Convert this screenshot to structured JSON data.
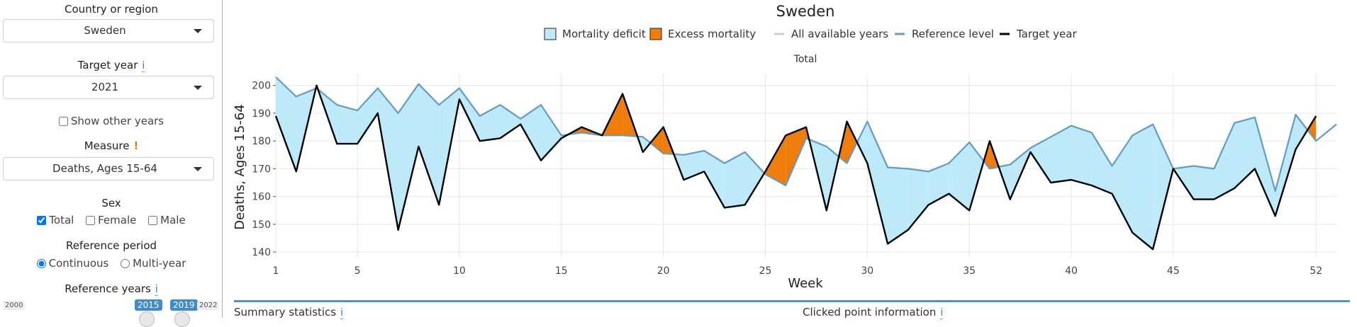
{
  "sidebar": {
    "country_label": "Country or region",
    "country_value": "Sweden",
    "target_year_label": "Target year",
    "target_year_value": "2021",
    "show_other_years_label": "Show other years",
    "measure_label": "Measure",
    "measure_value": "Deaths, Ages 15-64",
    "sex_label": "Sex",
    "sex_options": [
      "Total",
      "Female",
      "Male"
    ],
    "sex_selected": "Total",
    "reference_period_label": "Reference period",
    "reference_period_options": [
      "Continuous",
      "Multi-year"
    ],
    "reference_period_selected": "Continuous",
    "reference_years_label": "Reference years",
    "slider_min": "2000",
    "slider_start": "2015",
    "slider_end": "2019",
    "slider_max": "2022",
    "info_mark": "i",
    "warn_mark": "!"
  },
  "footer": {
    "summary_label": "Summary statistics",
    "clicked_label": "Clicked point information"
  },
  "colors": {
    "deficit_fill": "#bde9f9",
    "excess_fill": "#ef7d0c",
    "reference_line": "#5f9cc6",
    "target_line": "#000000",
    "all_years_line": "#cccccc"
  },
  "chart_data": {
    "type": "area",
    "title": "Sweden",
    "subtitle": "Total",
    "xlabel": "Week",
    "ylabel": "Deaths, Ages 15-64",
    "xlim": [
      1,
      53
    ],
    "ylim": [
      138,
      204
    ],
    "x_ticks": [
      1,
      5,
      10,
      15,
      20,
      25,
      30,
      35,
      40,
      45,
      52
    ],
    "y_ticks": [
      140,
      150,
      160,
      170,
      180,
      190,
      200
    ],
    "grid": true,
    "legend_position": "top",
    "legend": [
      "Mortality deficit",
      "Excess mortality",
      "All available years",
      "Reference level",
      "Target year"
    ],
    "x": [
      1,
      2,
      3,
      4,
      5,
      6,
      7,
      8,
      9,
      10,
      11,
      12,
      13,
      14,
      15,
      16,
      17,
      18,
      19,
      20,
      21,
      22,
      23,
      24,
      25,
      26,
      27,
      28,
      29,
      30,
      31,
      32,
      33,
      34,
      35,
      36,
      37,
      38,
      39,
      40,
      41,
      42,
      43,
      44,
      45,
      46,
      47,
      48,
      49,
      50,
      51,
      52,
      53
    ],
    "series": [
      {
        "name": "Reference level",
        "values": [
          203,
          196,
          199,
          193,
          191,
          199,
          190,
          200.5,
          193,
          199,
          189,
          193,
          188,
          193,
          182,
          183,
          182,
          182,
          181.5,
          175.5,
          175,
          176.5,
          172,
          176,
          168,
          164,
          181,
          178,
          172,
          187,
          170.5,
          170,
          169,
          172,
          179.5,
          170,
          171.5,
          177.5,
          181.5,
          185.5,
          183,
          171,
          182,
          186,
          170,
          171,
          170,
          186.5,
          188.5,
          162,
          189.5,
          180,
          186
        ]
      },
      {
        "name": "Target year",
        "values": [
          189,
          169,
          200,
          179,
          179,
          190,
          148,
          178,
          157,
          195,
          180,
          181,
          186,
          173,
          181,
          185,
          182,
          197,
          176,
          185,
          166,
          169,
          156,
          157,
          169,
          182,
          185,
          155,
          187,
          172,
          143,
          148,
          157,
          161,
          155,
          180,
          159,
          176,
          165,
          166,
          164,
          161,
          147,
          141,
          170,
          159,
          159,
          163,
          170,
          153,
          177,
          189,
          null
        ]
      }
    ]
  }
}
